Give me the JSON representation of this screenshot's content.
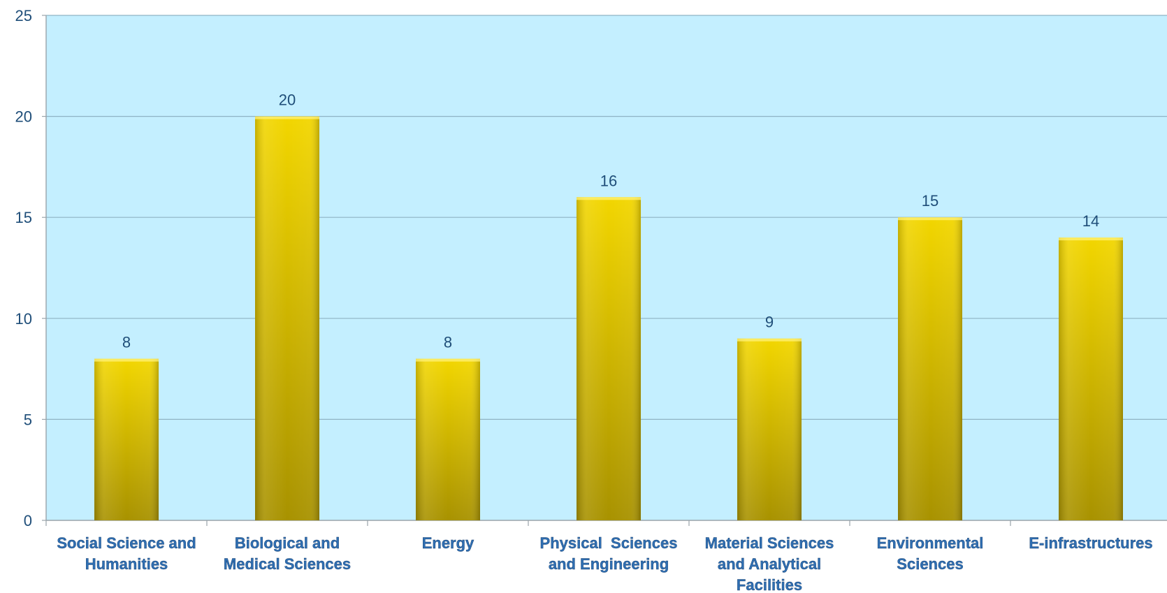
{
  "chart_data": {
    "type": "bar",
    "categories": [
      [
        "Social Science and",
        "Humanities"
      ],
      [
        "Biological and",
        "Medical Sciences"
      ],
      [
        "Energy"
      ],
      [
        "Physical  Sciences",
        "and Engineering"
      ],
      [
        "Material Sciences",
        "and Analytical",
        "Facilities"
      ],
      [
        "Environmental",
        "Sciences"
      ],
      [
        "E-infrastructures"
      ]
    ],
    "values": [
      8,
      20,
      8,
      16,
      9,
      15,
      14
    ],
    "ylim": [
      0,
      25
    ],
    "yticks": [
      0,
      5,
      10,
      15,
      20,
      25
    ],
    "title": "",
    "xlabel": "",
    "ylabel": "",
    "grid": true,
    "colors": {
      "plot_background": "#c4efff",
      "bar_light": "#f2d600",
      "bar_dark": "#a89200",
      "gridline": "#8fb3c4",
      "text": "#1f4e79"
    }
  }
}
